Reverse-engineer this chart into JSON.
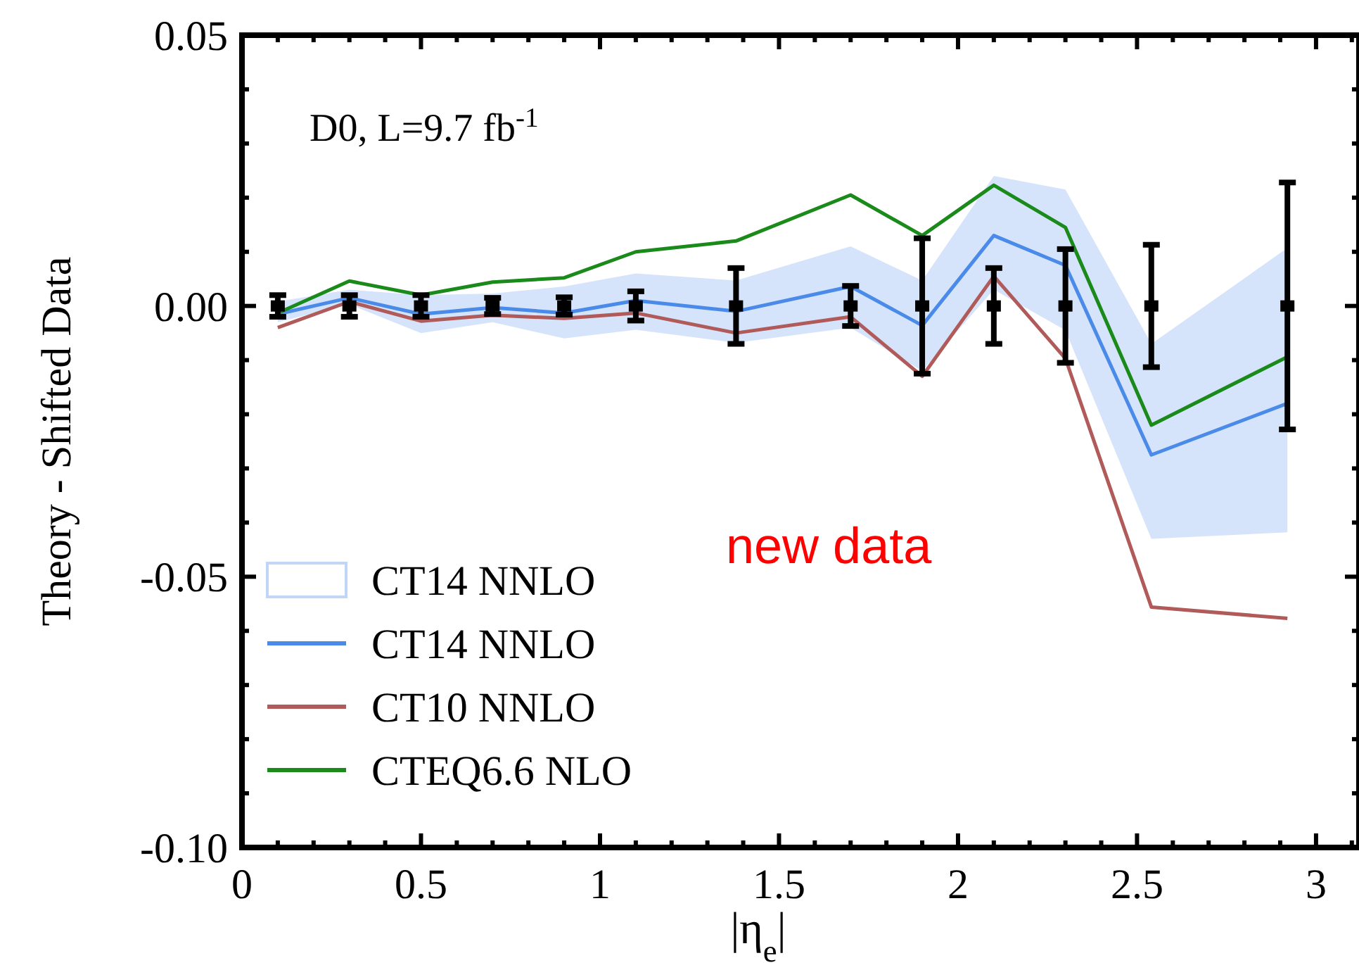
{
  "chart_data": {
    "type": "line",
    "xlabel": "|η$_{e}$|",
    "ylabel": "Theory - Shifted Data",
    "annotations": [
      "D0, L=9.7 fb$^{-1}$",
      "new data"
    ],
    "x": [
      0.1,
      0.3,
      0.5,
      0.7,
      0.9,
      1.1,
      1.38,
      1.7,
      1.9,
      2.1,
      2.3,
      2.54,
      2.92
    ],
    "series": [
      {
        "name": "CT14 NNLO",
        "color": "#4a8ae8",
        "values": [
          -0.0015,
          0.0015,
          -0.0015,
          -0.0003,
          -0.0013,
          0.001,
          -0.001,
          0.0036,
          -0.0036,
          0.013,
          0.0075,
          -0.0275,
          -0.018
        ],
        "lower": [
          -0.003,
          0.0003,
          -0.005,
          -0.003,
          -0.006,
          -0.0044,
          -0.0068,
          -0.004,
          -0.012,
          0.003,
          -0.0045,
          -0.043,
          -0.0418
        ],
        "upper": [
          0.0008,
          0.003,
          0.002,
          0.0023,
          0.0036,
          0.006,
          0.0047,
          0.011,
          0.0047,
          0.024,
          0.0215,
          -0.007,
          0.0107
        ]
      },
      {
        "name": "CT10 NNLO",
        "color": "#b05a5a",
        "values": [
          -0.004,
          0.0008,
          -0.0028,
          -0.0017,
          -0.0023,
          -0.0013,
          -0.005,
          -0.002,
          -0.013,
          0.0055,
          -0.0097,
          -0.0556,
          -0.0577
        ]
      },
      {
        "name": "CTEQ6.6 NLO",
        "color": "#1a8a1a",
        "values": [
          -0.0013,
          0.0046,
          0.002,
          0.0044,
          0.0052,
          0.01,
          0.012,
          0.0205,
          0.013,
          0.0223,
          0.0145,
          -0.022,
          -0.0094
        ]
      },
      {
        "type": "scatter",
        "color": "#000000",
        "marker": "square",
        "values": [
          0,
          0,
          0,
          0,
          0,
          0,
          0,
          0,
          0,
          0,
          0,
          0,
          0
        ],
        "errors": [
          0.002,
          0.002,
          0.002,
          0.0015,
          0.0016,
          0.0027,
          0.007,
          0.0037,
          0.0125,
          0.007,
          0.0105,
          0.0113,
          0.0228
        ]
      }
    ],
    "xlim": [
      0,
      3.12
    ],
    "ylim": [
      -0.1,
      0.05
    ],
    "xticks": [
      0,
      {
        "value": 0.1,
        "label": null
      },
      {
        "value": 0.2,
        "label": null
      },
      {
        "value": 0.3,
        "label": null
      },
      {
        "value": 0.4,
        "label": null
      },
      0.5,
      {
        "value": 0.6,
        "label": null
      },
      {
        "value": 0.7,
        "label": null
      },
      {
        "value": 0.8,
        "label": null
      },
      {
        "value": 0.9,
        "label": null
      },
      1,
      {
        "value": 1.1,
        "label": null
      },
      {
        "value": 1.2,
        "label": null
      },
      {
        "value": 1.3,
        "label": null
      },
      {
        "value": 1.4,
        "label": null
      },
      1.5,
      {
        "value": 1.6,
        "label": null
      },
      {
        "value": 1.7,
        "label": null
      },
      {
        "value": 1.8,
        "label": null
      },
      {
        "value": 1.9,
        "label": null
      },
      2,
      {
        "value": 2.1,
        "label": null
      },
      {
        "value": 2.2,
        "label": null
      },
      {
        "value": 2.3,
        "label": null
      },
      {
        "value": 2.4,
        "label": null
      },
      2.5,
      {
        "value": 2.6,
        "label": null
      },
      {
        "value": 2.7,
        "label": null
      },
      {
        "value": 2.8,
        "label": null
      },
      {
        "value": 2.9,
        "label": null
      },
      3,
      {
        "value": 3.1,
        "label": null
      }
    ],
    "yticks": [
      {
        "value": -0.1,
        "label": "-0.10"
      },
      {
        "value": -0.09,
        "label": null
      },
      {
        "value": -0.08,
        "label": null
      },
      {
        "value": -0.07,
        "label": null
      },
      {
        "value": -0.06,
        "label": null
      },
      {
        "value": -0.05,
        "label": "-0.05"
      },
      {
        "value": -0.04,
        "label": null
      },
      {
        "value": -0.03,
        "label": null
      },
      {
        "value": -0.02,
        "label": null
      },
      {
        "value": -0.01,
        "label": null
      },
      {
        "value": 0,
        "label": "0.00"
      },
      {
        "value": 0.01,
        "label": null
      },
      {
        "value": 0.02,
        "label": null
      },
      {
        "value": 0.03,
        "label": null
      },
      {
        "value": 0.04,
        "label": null
      },
      {
        "value": 0.05,
        "label": "0.05"
      }
    ],
    "legend": "bottom left",
    "grid": false
  }
}
